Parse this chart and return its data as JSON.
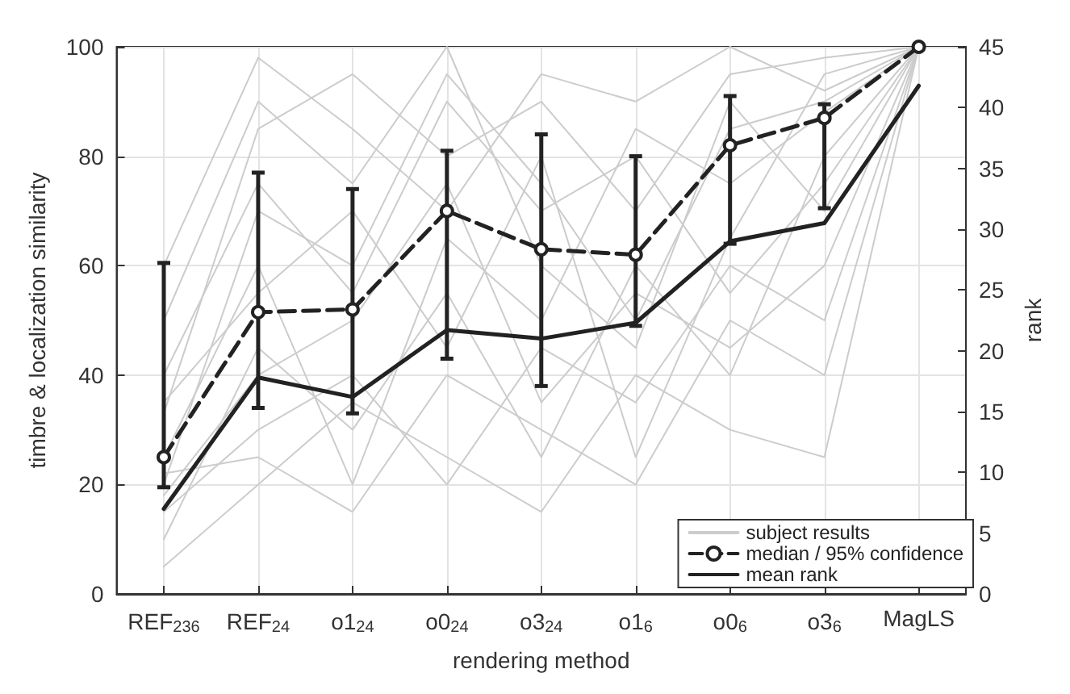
{
  "chart_data": {
    "type": "line",
    "xlabel": "rendering method",
    "ylabel": "timbre & localization similarity",
    "y2label": "rank",
    "categories": [
      "REF$_{236}$",
      "REF$_{24}$",
      "o1$_{24}$",
      "o0$_{24}$",
      "o3$_{24}$",
      "o1$_{6}$",
      "o0$_{6}$",
      "o3$_{6}$",
      "MagLS"
    ],
    "ylim": [
      0,
      100
    ],
    "yticks": [
      0,
      20,
      40,
      60,
      80,
      100
    ],
    "y2lim": [
      0,
      45
    ],
    "y2ticks": [
      0,
      5,
      10,
      15,
      20,
      25,
      30,
      35,
      40,
      45
    ],
    "grid": true,
    "legend": "bottom right",
    "series": [
      {
        "name": "subject results",
        "color": "#cccccc",
        "marker": "none",
        "values": [
          20,
          70,
          60,
          95,
          75,
          50,
          85,
          90,
          100
        ]
      },
      {
        "color": "#cccccc",
        "marker": "none",
        "values": [
          10,
          45,
          30,
          55,
          25,
          60,
          40,
          80,
          100
        ]
      },
      {
        "color": "#cccccc",
        "marker": "none",
        "values": [
          33,
          85,
          95,
          80,
          90,
          70,
          95,
          98,
          100
        ]
      },
      {
        "color": "#cccccc",
        "marker": "none",
        "values": [
          15,
          30,
          40,
          20,
          45,
          35,
          60,
          50,
          100
        ]
      },
      {
        "color": "#cccccc",
        "marker": "none",
        "values": [
          25,
          60,
          20,
          65,
          50,
          85,
          75,
          88,
          100
        ]
      },
      {
        "color": "#cccccc",
        "marker": "none",
        "values": [
          50,
          90,
          75,
          100,
          60,
          45,
          90,
          70,
          100
        ]
      },
      {
        "color": "#cccccc",
        "marker": "none",
        "values": [
          5,
          20,
          35,
          25,
          15,
          40,
          30,
          25,
          100
        ]
      },
      {
        "color": "#cccccc",
        "marker": "none",
        "values": [
          35,
          55,
          70,
          45,
          80,
          25,
          65,
          95,
          100
        ]
      },
      {
        "color": "#cccccc",
        "marker": "none",
        "values": [
          18,
          40,
          50,
          75,
          35,
          55,
          45,
          60,
          100
        ]
      },
      {
        "color": "#cccccc",
        "marker": "none",
        "values": [
          60,
          98,
          85,
          70,
          95,
          90,
          100,
          92,
          100
        ]
      },
      {
        "color": "#cccccc",
        "marker": "none",
        "values": [
          22,
          25,
          15,
          40,
          30,
          20,
          50,
          40,
          100
        ]
      },
      {
        "color": "#cccccc",
        "marker": "none",
        "values": [
          40,
          75,
          55,
          90,
          70,
          80,
          55,
          75,
          100
        ]
      },
      {
        "name": "median / 95% confidence",
        "color": "#222222",
        "marker": "circle",
        "line_style": "dashed",
        "values": [
          25,
          51.5,
          52,
          70,
          63,
          62,
          82,
          87,
          100
        ],
        "errors": [
          [
            19.5,
            60.5
          ],
          [
            34,
            77
          ],
          [
            33,
            74
          ],
          [
            43,
            81
          ],
          [
            38,
            84
          ],
          [
            49,
            80
          ],
          [
            64,
            91
          ],
          [
            70.5,
            89.5
          ],
          null
        ]
      },
      {
        "name": "mean rank",
        "color": "#222222",
        "marker": "none",
        "line_style": "solid",
        "axis": "y2",
        "values": [
          7,
          17.8,
          16.2,
          21.7,
          21,
          22.3,
          29,
          30.5,
          41.8
        ]
      }
    ]
  }
}
